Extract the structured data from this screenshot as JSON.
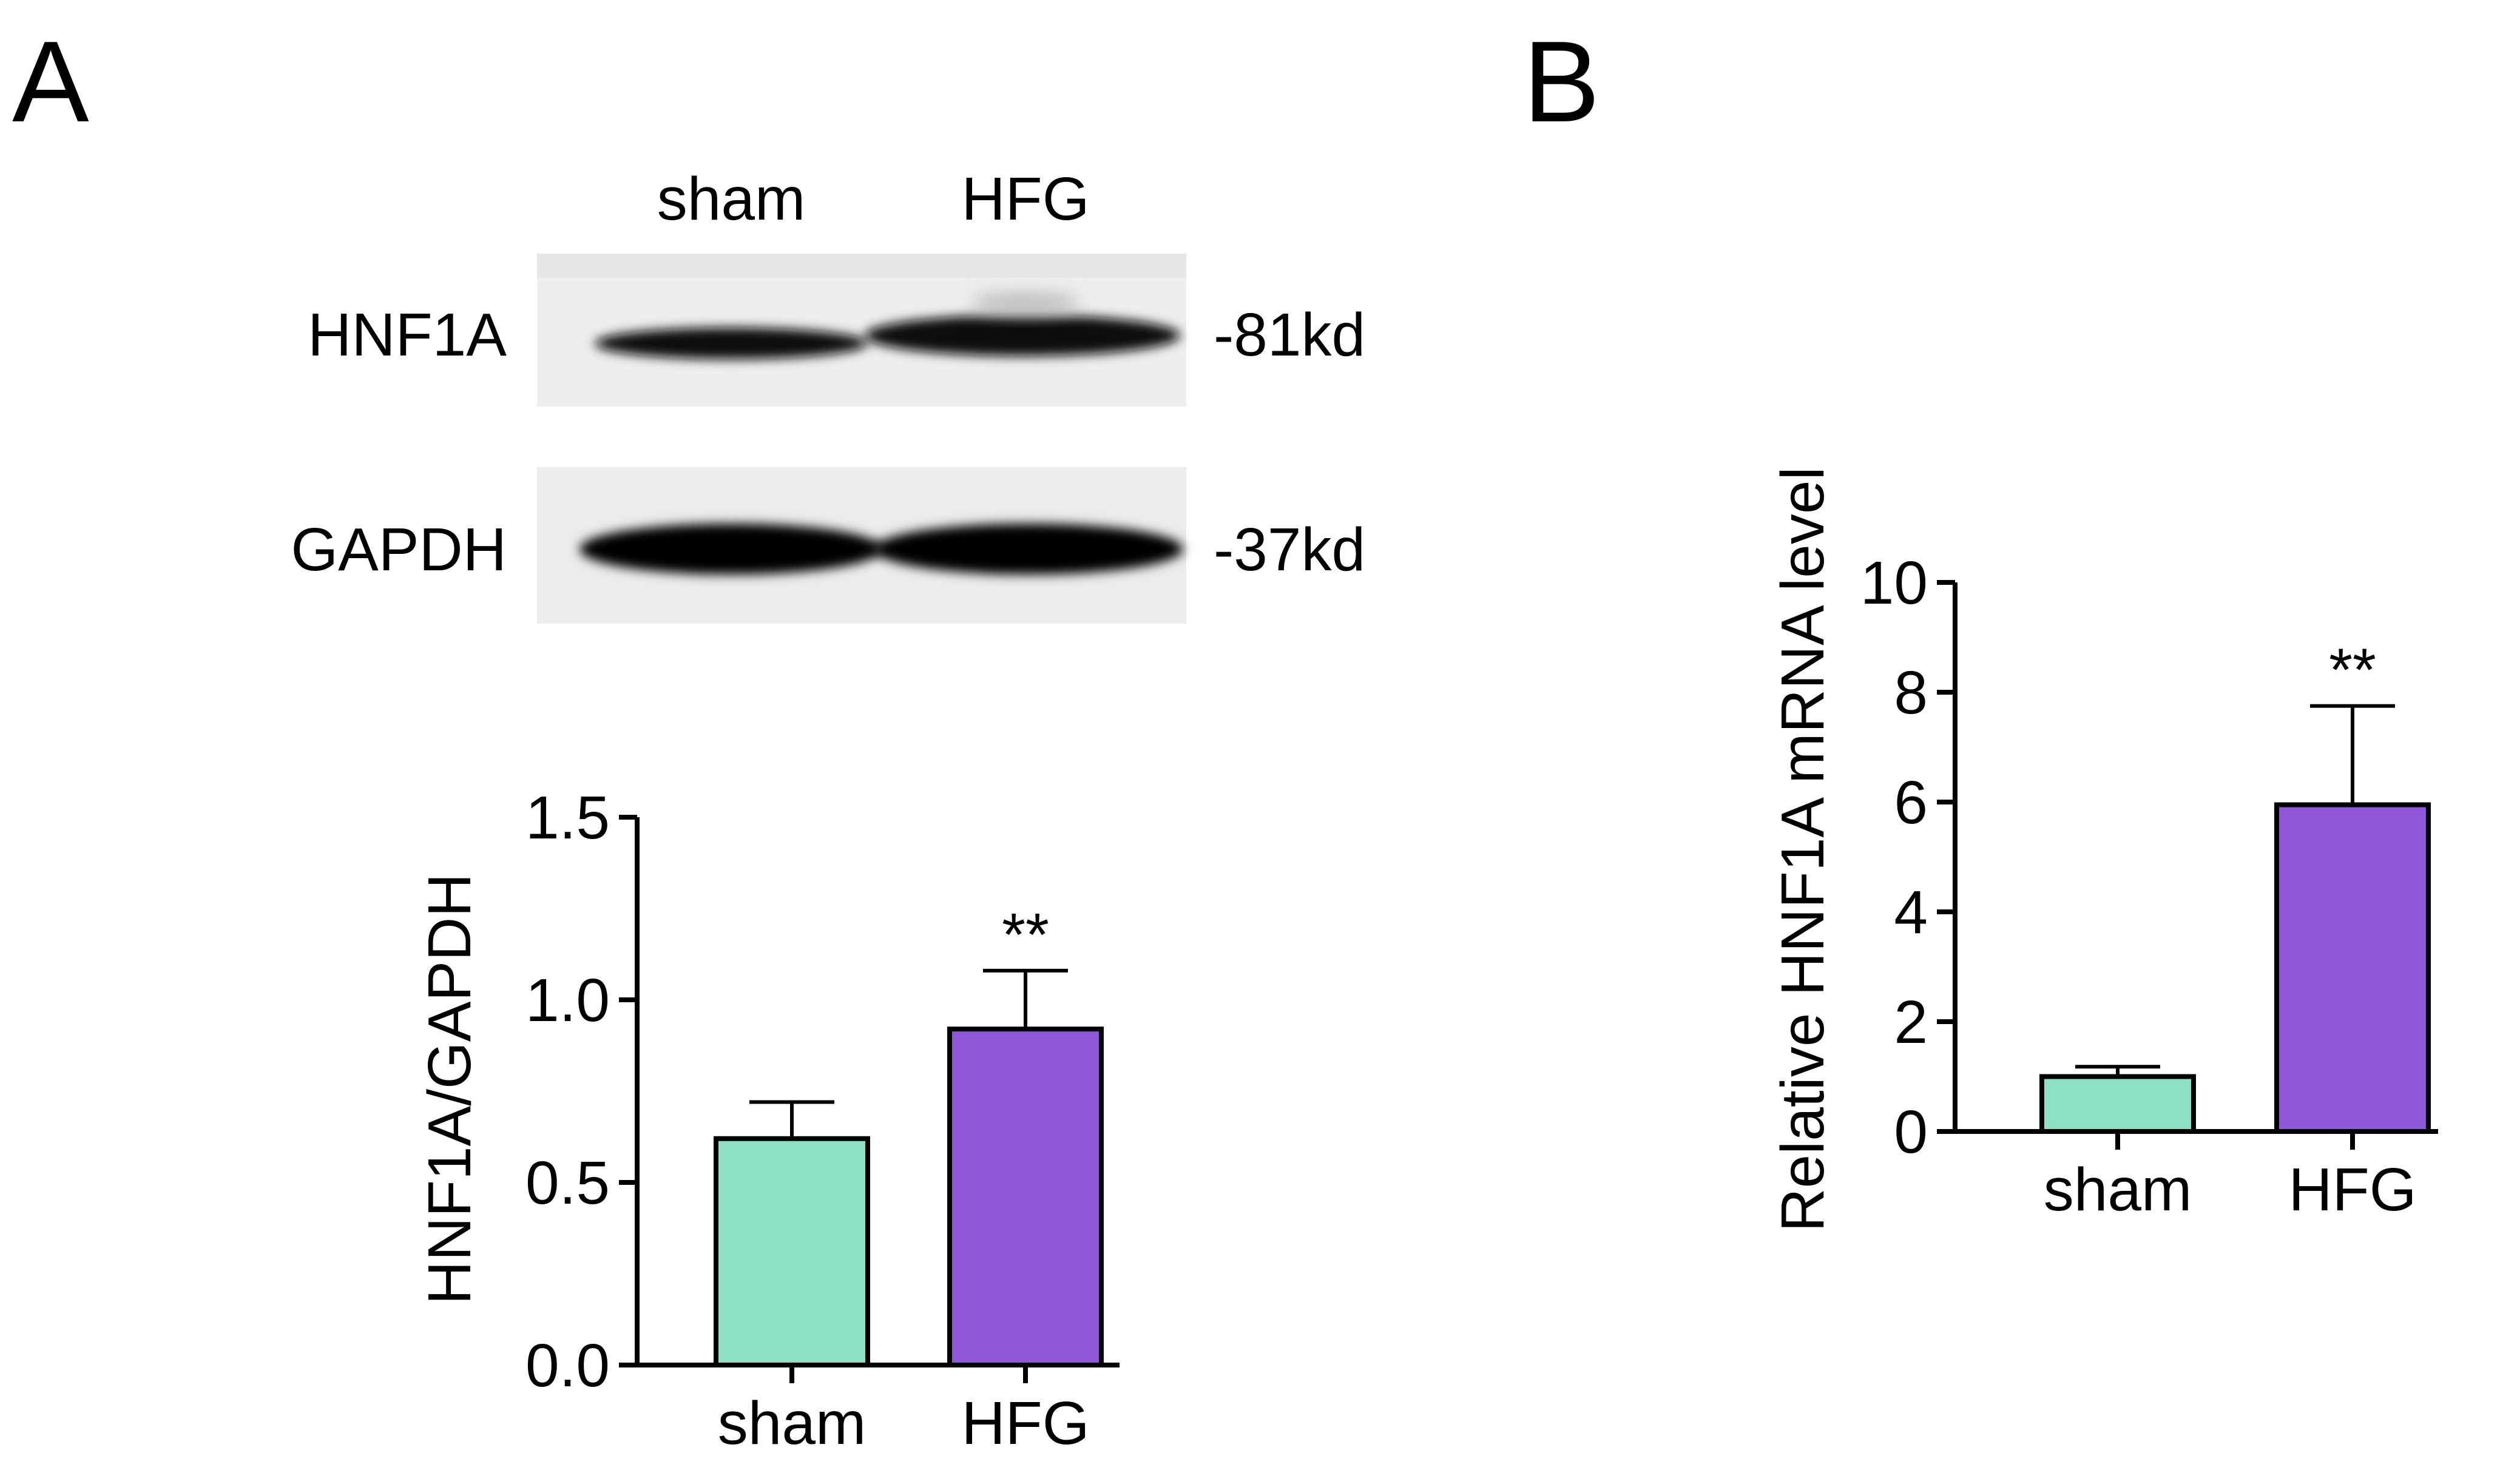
{
  "panels": {
    "A": {
      "letter": "A",
      "blot": {
        "lanes": [
          "sham",
          "HFG"
        ],
        "rows": [
          {
            "protein": "HNF1A",
            "size": "-81kd"
          },
          {
            "protein": "GAPDH",
            "size": "-37kd"
          }
        ]
      }
    },
    "B": {
      "letter": "B"
    }
  },
  "chart_data": [
    {
      "type": "bar",
      "panel": "A",
      "categories": [
        "sham",
        "HFG"
      ],
      "values": [
        0.62,
        0.92
      ],
      "errors": [
        0.1,
        0.16
      ],
      "significance": [
        "",
        "**"
      ],
      "ylabel": "HNF1A/GAPDH",
      "ylim": [
        0,
        1.5
      ],
      "yticks": [
        0.0,
        0.5,
        1.0,
        1.5
      ],
      "ytick_labels": [
        "0.0",
        "0.5",
        "1.0",
        "1.5"
      ],
      "colors": [
        "#8ddfc6",
        "#8e57d9"
      ]
    },
    {
      "type": "bar",
      "panel": "B",
      "categories": [
        "sham",
        "HFG"
      ],
      "values": [
        1.0,
        5.95
      ],
      "errors": [
        0.18,
        1.8
      ],
      "significance": [
        "",
        "**"
      ],
      "ylabel": "Relative HNF1A mRNA level",
      "ylim": [
        0,
        10
      ],
      "yticks": [
        0,
        2,
        4,
        6,
        8,
        10
      ],
      "ytick_labels": [
        "0",
        "2",
        "4",
        "6",
        "8",
        "10"
      ],
      "colors": [
        "#8ddfc6",
        "#8e57d9"
      ]
    }
  ]
}
